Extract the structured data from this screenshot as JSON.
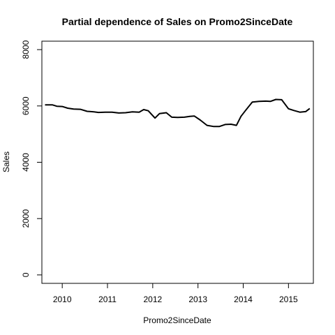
{
  "chart_data": {
    "type": "line",
    "title": "Partial dependence of Sales on Promo2SinceDate",
    "xlabel": "Promo2SinceDate",
    "ylabel": "Sales",
    "xlim": [
      2009.55,
      2015.55
    ],
    "ylim": [
      -300,
      8300
    ],
    "x_ticks": [
      2010,
      2011,
      2012,
      2013,
      2014,
      2015
    ],
    "x_tick_labels": [
      "2010",
      "2011",
      "2012",
      "2013",
      "2014",
      "2015"
    ],
    "y_ticks": [
      0,
      2000,
      4000,
      6000,
      8000
    ],
    "y_tick_labels": [
      "0",
      "2000",
      "4000",
      "6000",
      "8000"
    ],
    "grid": false,
    "legend": "none",
    "line_color": "#000000",
    "series": [
      {
        "x": [
          2009.62,
          2009.78,
          2009.88,
          2010.0,
          2010.12,
          2010.25,
          2010.4,
          2010.55,
          2010.7,
          2010.8,
          2010.95,
          2011.1,
          2011.25,
          2011.4,
          2011.55,
          2011.7,
          2011.8,
          2011.9,
          2012.05,
          2012.15,
          2012.3,
          2012.42,
          2012.55,
          2012.7,
          2012.82,
          2012.92,
          2013.05,
          2013.2,
          2013.35,
          2013.47,
          2013.6,
          2013.73,
          2013.85,
          2013.95,
          2014.05,
          2014.2,
          2014.35,
          2014.5,
          2014.6,
          2014.72,
          2014.85,
          2015.0,
          2015.12,
          2015.25,
          2015.38,
          2015.47
        ],
        "y": [
          6040,
          6040,
          5990,
          5980,
          5920,
          5890,
          5880,
          5810,
          5790,
          5770,
          5780,
          5780,
          5750,
          5760,
          5790,
          5780,
          5870,
          5830,
          5570,
          5730,
          5760,
          5600,
          5590,
          5600,
          5630,
          5640,
          5500,
          5310,
          5270,
          5270,
          5340,
          5350,
          5310,
          5630,
          5840,
          6140,
          6160,
          6170,
          6160,
          6230,
          6220,
          5900,
          5840,
          5780,
          5800,
          5910
        ]
      }
    ]
  }
}
